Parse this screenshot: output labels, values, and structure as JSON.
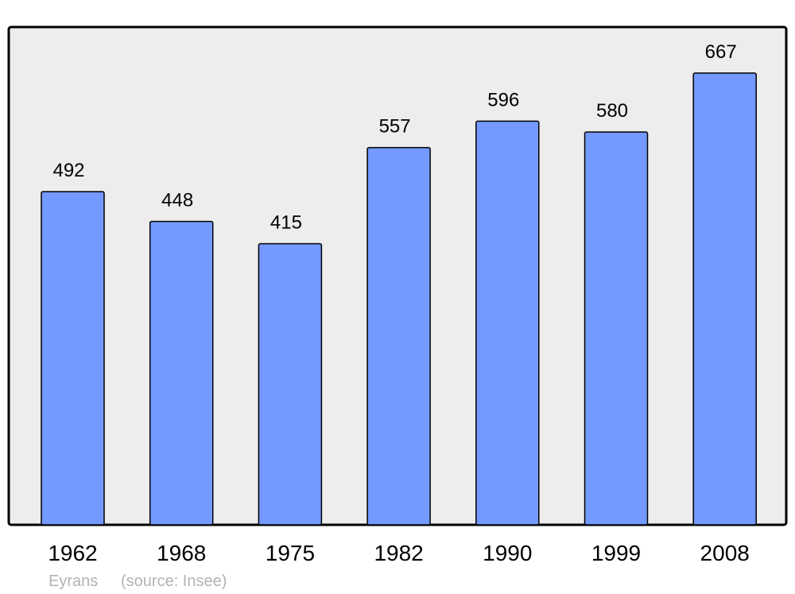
{
  "chart_data": {
    "type": "bar",
    "title": "",
    "xlabel": "",
    "ylabel": "",
    "categories": [
      "1962",
      "1968",
      "1975",
      "1982",
      "1990",
      "1999",
      "2008"
    ],
    "values": [
      492,
      448,
      415,
      557,
      596,
      580,
      667
    ],
    "data_labels": [
      "492",
      "448",
      "415",
      "557",
      "596",
      "580",
      "667"
    ],
    "ylim": [
      0,
      735
    ],
    "grid": false,
    "legend": "none",
    "colors": {
      "bar": "#7499ff",
      "plot_background": "#ededed",
      "border": "#000000",
      "caption": "#b3b3b3"
    }
  },
  "caption": {
    "place": "Eyrans",
    "source": "(source: Insee)"
  }
}
